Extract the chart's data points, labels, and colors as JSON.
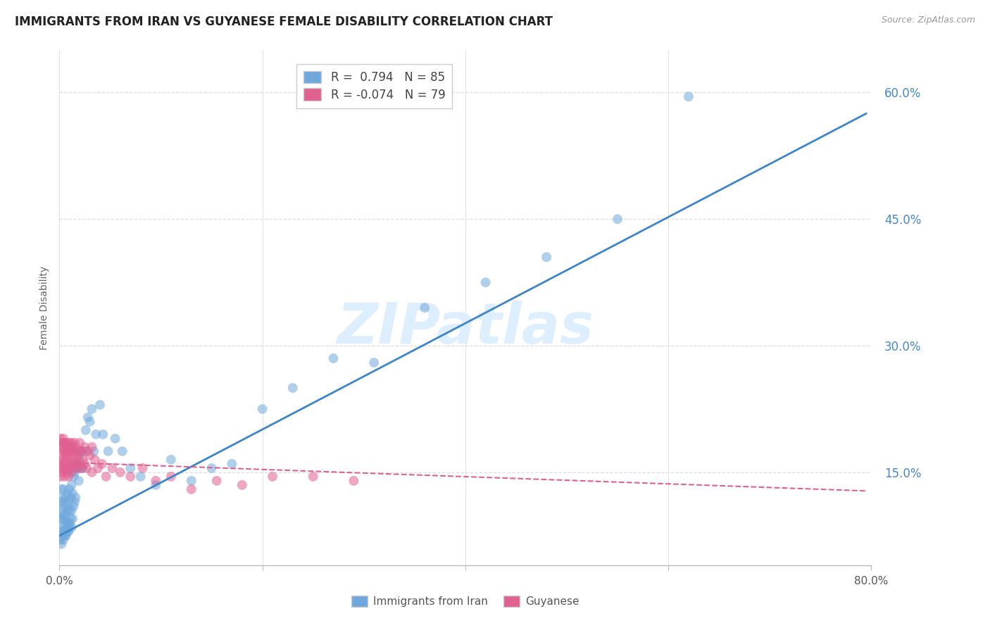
{
  "title": "IMMIGRANTS FROM IRAN VS GUYANESE FEMALE DISABILITY CORRELATION CHART",
  "source": "Source: ZipAtlas.com",
  "ylabel": "Female Disability",
  "xlim": [
    0.0,
    0.8
  ],
  "ylim": [
    0.04,
    0.65
  ],
  "yticks": [
    0.15,
    0.3,
    0.45,
    0.6
  ],
  "xticks": [
    0.0,
    0.2,
    0.4,
    0.6,
    0.8
  ],
  "xtick_labels": [
    "0.0%",
    "",
    "",
    "",
    "80.0%"
  ],
  "ytick_labels": [
    "15.0%",
    "30.0%",
    "45.0%",
    "60.0%"
  ],
  "blue_color": "#6fa8dc",
  "pink_color": "#e06090",
  "blue_line_color": "#3d85c8",
  "pink_line_color": "#e06090",
  "watermark": "ZIPatlas",
  "legend_r_blue": "0.794",
  "legend_n_blue": "85",
  "legend_r_pink": "-0.074",
  "legend_n_pink": "79",
  "blue_scatter_x": [
    0.001,
    0.001,
    0.002,
    0.002,
    0.002,
    0.003,
    0.003,
    0.003,
    0.004,
    0.004,
    0.004,
    0.005,
    0.005,
    0.005,
    0.006,
    0.006,
    0.006,
    0.007,
    0.007,
    0.008,
    0.008,
    0.008,
    0.009,
    0.009,
    0.01,
    0.01,
    0.01,
    0.011,
    0.011,
    0.012,
    0.012,
    0.013,
    0.013,
    0.014,
    0.014,
    0.015,
    0.015,
    0.016,
    0.016,
    0.017,
    0.018,
    0.019,
    0.02,
    0.021,
    0.022,
    0.023,
    0.025,
    0.026,
    0.028,
    0.03,
    0.032,
    0.034,
    0.036,
    0.04,
    0.043,
    0.048,
    0.055,
    0.062,
    0.07,
    0.08,
    0.095,
    0.11,
    0.13,
    0.15,
    0.17,
    0.2,
    0.23,
    0.27,
    0.31,
    0.36,
    0.42,
    0.48,
    0.55,
    0.62,
    0.001,
    0.002,
    0.003,
    0.004,
    0.005,
    0.006,
    0.007,
    0.008,
    0.009,
    0.01,
    0.012
  ],
  "blue_scatter_y": [
    0.115,
    0.095,
    0.105,
    0.13,
    0.085,
    0.11,
    0.095,
    0.12,
    0.1,
    0.13,
    0.08,
    0.115,
    0.095,
    0.085,
    0.12,
    0.1,
    0.075,
    0.11,
    0.09,
    0.125,
    0.105,
    0.08,
    0.115,
    0.09,
    0.13,
    0.105,
    0.085,
    0.12,
    0.095,
    0.135,
    0.105,
    0.125,
    0.095,
    0.145,
    0.11,
    0.15,
    0.115,
    0.155,
    0.12,
    0.155,
    0.16,
    0.14,
    0.165,
    0.155,
    0.175,
    0.155,
    0.175,
    0.2,
    0.215,
    0.21,
    0.225,
    0.175,
    0.195,
    0.23,
    0.195,
    0.175,
    0.19,
    0.175,
    0.155,
    0.145,
    0.135,
    0.165,
    0.14,
    0.155,
    0.16,
    0.225,
    0.25,
    0.285,
    0.28,
    0.345,
    0.375,
    0.405,
    0.45,
    0.595,
    0.07,
    0.065,
    0.075,
    0.07,
    0.08,
    0.075,
    0.08,
    0.085,
    0.08,
    0.09,
    0.085
  ],
  "pink_scatter_x": [
    0.001,
    0.001,
    0.002,
    0.002,
    0.003,
    0.003,
    0.003,
    0.004,
    0.004,
    0.005,
    0.005,
    0.005,
    0.006,
    0.006,
    0.007,
    0.007,
    0.008,
    0.008,
    0.009,
    0.009,
    0.01,
    0.01,
    0.011,
    0.012,
    0.012,
    0.013,
    0.014,
    0.015,
    0.015,
    0.016,
    0.017,
    0.018,
    0.019,
    0.02,
    0.021,
    0.022,
    0.023,
    0.025,
    0.027,
    0.03,
    0.032,
    0.035,
    0.038,
    0.042,
    0.046,
    0.052,
    0.06,
    0.07,
    0.082,
    0.095,
    0.11,
    0.13,
    0.155,
    0.18,
    0.21,
    0.25,
    0.29,
    0.001,
    0.002,
    0.003,
    0.004,
    0.005,
    0.006,
    0.007,
    0.008,
    0.009,
    0.01,
    0.011,
    0.012,
    0.013,
    0.014,
    0.015,
    0.016,
    0.018,
    0.02,
    0.022,
    0.025,
    0.028,
    0.032
  ],
  "pink_scatter_y": [
    0.16,
    0.145,
    0.155,
    0.17,
    0.165,
    0.15,
    0.18,
    0.155,
    0.175,
    0.16,
    0.145,
    0.185,
    0.155,
    0.17,
    0.15,
    0.165,
    0.155,
    0.175,
    0.145,
    0.17,
    0.16,
    0.18,
    0.155,
    0.165,
    0.15,
    0.16,
    0.17,
    0.155,
    0.175,
    0.16,
    0.165,
    0.155,
    0.17,
    0.16,
    0.175,
    0.155,
    0.165,
    0.16,
    0.155,
    0.17,
    0.15,
    0.165,
    0.155,
    0.16,
    0.145,
    0.155,
    0.15,
    0.145,
    0.155,
    0.14,
    0.145,
    0.13,
    0.14,
    0.135,
    0.145,
    0.145,
    0.14,
    0.19,
    0.185,
    0.18,
    0.19,
    0.185,
    0.175,
    0.185,
    0.175,
    0.18,
    0.185,
    0.175,
    0.185,
    0.18,
    0.175,
    0.185,
    0.18,
    0.175,
    0.185,
    0.175,
    0.18,
    0.175,
    0.18
  ],
  "blue_line_x": [
    0.0,
    0.795
  ],
  "blue_line_y": [
    0.075,
    0.575
  ],
  "pink_line_x": [
    0.0,
    0.795
  ],
  "pink_line_y": [
    0.162,
    0.128
  ],
  "background_color": "#ffffff",
  "grid_color": "#dddddd",
  "title_fontsize": 12,
  "tick_label_color_y": "#4488cc",
  "watermark_color": "#ddeeff",
  "watermark_fontsize": 58
}
